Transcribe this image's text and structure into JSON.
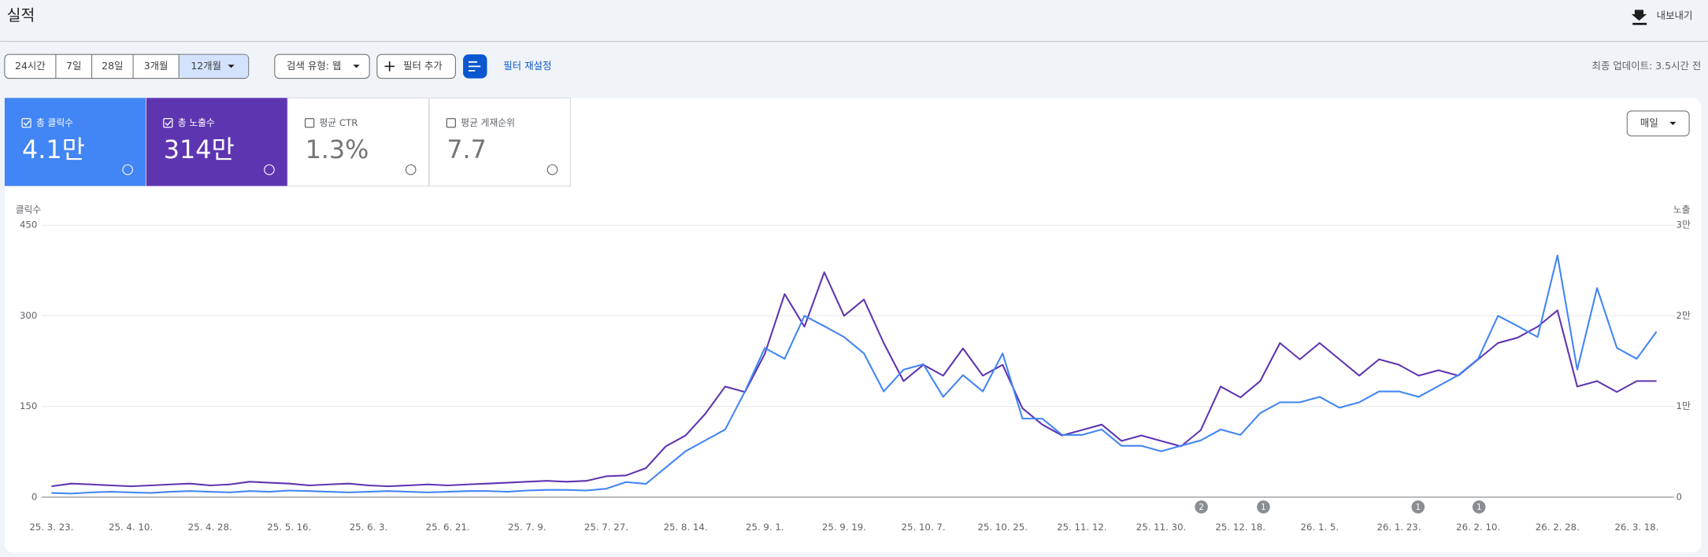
{
  "header": {
    "title": "실적",
    "export": "내보내기"
  },
  "filters": {
    "ranges": [
      "24시간",
      "7일",
      "28일",
      "3개월",
      "12개월"
    ],
    "search_type": "검색 유형: 웹",
    "add_filter": "필터 추가",
    "reset": "필터 재설정",
    "updated": "최종 업데이트: 3.5시간 전"
  },
  "metrics": [
    {
      "label": "평균 CTR",
      "value": "1.3%"
    },
    {
      "label": "평균 게재순위",
      "value": "7.7"
    }
  ],
  "granularity": "매일",
  "chart_data": {
    "type": "line",
    "y_label": "클릭수",
    "y2_label": "노출",
    "categories": [
      "25. 3. 23.",
      null,
      null,
      null,
      "25. 4. 10.",
      null,
      null,
      null,
      "25. 4. 28.",
      null,
      null,
      null,
      "25. 5. 16.",
      null,
      null,
      null,
      "25. 6. 3.",
      null,
      null,
      null,
      "25. 6. 21.",
      null,
      null,
      null,
      "25. 7. 9.",
      null,
      null,
      null,
      "25. 7. 27.",
      null,
      null,
      null,
      "25. 8. 14.",
      null,
      null,
      null,
      "25. 9. 1.",
      null,
      null,
      null,
      "25. 9. 19.",
      null,
      null,
      null,
      "25. 10. 7.",
      null,
      null,
      null,
      "25. 10. 25.",
      null,
      null,
      null,
      "25. 11. 12.",
      null,
      null,
      null,
      "25. 11. 30.",
      null,
      null,
      null,
      "25. 12. 18.",
      null,
      null,
      null,
      "26. 1. 5.",
      null,
      null,
      null,
      "26. 1. 23.",
      null,
      null,
      null,
      "26. 2. 10.",
      null,
      null,
      null,
      "26. 2. 28.",
      null,
      null,
      null,
      "26. 3. 18.",
      null
    ],
    "series": [
      {
        "name": "총 클릭수",
        "total": "4.1만",
        "color": "#4285f4",
        "values": [
          7,
          6,
          8,
          9,
          8,
          7,
          9,
          10,
          9,
          8,
          10,
          9,
          11,
          10,
          9,
          8,
          9,
          10,
          9,
          8,
          9,
          10,
          10,
          9,
          11,
          12,
          12,
          11,
          14,
          25,
          22,
          49,
          76,
          94,
          112,
          175,
          247,
          229,
          300,
          283,
          265,
          238,
          175,
          211,
          220,
          166,
          202,
          175,
          238,
          130,
          130,
          103,
          103,
          112,
          85,
          85,
          76,
          85,
          94,
          112,
          103,
          139,
          157,
          157,
          166,
          148,
          157,
          175,
          175,
          166,
          184,
          202,
          229,
          300,
          283,
          265,
          400,
          211,
          346,
          247,
          229,
          274
        ]
      },
      {
        "name": "총 노출수",
        "total": "314만",
        "color": "#5e35b1",
        "axis": "y2",
        "values": [
          1200,
          1500,
          1400,
          1300,
          1200,
          1300,
          1400,
          1500,
          1300,
          1400,
          1700,
          1600,
          1500,
          1300,
          1400,
          1500,
          1300,
          1200,
          1300,
          1400,
          1300,
          1400,
          1500,
          1600,
          1700,
          1800,
          1700,
          1800,
          2300,
          2400,
          3200,
          5600,
          6800,
          9200,
          12200,
          11600,
          15800,
          22400,
          18800,
          24800,
          20000,
          21800,
          17000,
          12800,
          14600,
          13400,
          16400,
          13400,
          14600,
          9800,
          8000,
          6800,
          7400,
          8000,
          6200,
          6800,
          6200,
          5600,
          7400,
          12200,
          11000,
          12800,
          17000,
          15200,
          17000,
          15200,
          13400,
          15200,
          14600,
          13400,
          14000,
          13400,
          15200,
          17000,
          17600,
          18800,
          20600,
          12200,
          12800,
          11600,
          12800,
          12800
        ]
      }
    ],
    "ylim": [
      0,
      450
    ],
    "yticks": [
      0,
      150,
      300,
      450
    ],
    "y2lim": [
      0,
      30000
    ],
    "y2ticks": [
      0,
      {
        "value": 10000,
        "label": "1만"
      },
      {
        "value": 20000,
        "label": "2만"
      },
      {
        "value": 30000,
        "label": "3만"
      }
    ],
    "grid": true,
    "annotations": [
      2,
      1,
      1,
      1
    ]
  }
}
